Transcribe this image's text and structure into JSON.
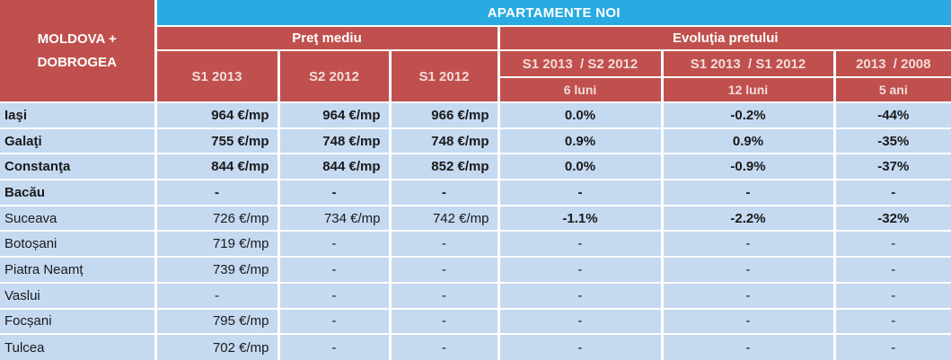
{
  "colors": {
    "title_band_blue": "#29ABE2",
    "header_red": "#C0504D",
    "row_light_blue": "#C5D9F1",
    "subheader_text_pink": "#F2DCDB",
    "grid_white": "#FFFFFF"
  },
  "chart_data": {
    "type": "table",
    "title": "APARTAMENTE NOI",
    "region_lines": [
      "MOLDOVA +",
      "DOBROGEA"
    ],
    "groups": [
      {
        "label": "Preţ mediu"
      },
      {
        "label": "Evoluţia pretului"
      }
    ],
    "price_columns": [
      "S1 2013",
      "S2 2012",
      "S1 2012"
    ],
    "change_columns": [
      {
        "period": "S1 2013  / S2 2012",
        "duration": "6 luni"
      },
      {
        "period": "S1 2013  / S1 2012",
        "duration": "12 luni"
      },
      {
        "period": "2013  / 2008",
        "duration": "5 ani"
      }
    ],
    "rows": [
      {
        "city": "Iaşi",
        "prices": [
          "964 €/mp",
          "964 €/mp",
          "966 €/mp"
        ],
        "changes": [
          "0.0%",
          "-0.2%",
          "-44%"
        ],
        "bold": {
          "city": true,
          "prices": true,
          "changes": true
        }
      },
      {
        "city": "Galaţi",
        "prices": [
          "755 €/mp",
          "748 €/mp",
          "748 €/mp"
        ],
        "changes": [
          "0.9%",
          "0.9%",
          "-35%"
        ],
        "bold": {
          "city": true,
          "prices": true,
          "changes": true
        }
      },
      {
        "city": "Constanţa",
        "prices": [
          "844 €/mp",
          "844 €/mp",
          "852 €/mp"
        ],
        "changes": [
          "0.0%",
          "-0.9%",
          "-37%"
        ],
        "bold": {
          "city": true,
          "prices": true,
          "changes": true
        }
      },
      {
        "city": "Bacău",
        "prices": [
          "-",
          "-",
          "-"
        ],
        "changes": [
          "-",
          "-",
          "-"
        ],
        "bold": {
          "city": true,
          "prices": true,
          "changes": true
        }
      },
      {
        "city": "Suceava",
        "prices": [
          "726 €/mp",
          "734 €/mp",
          "742 €/mp"
        ],
        "changes": [
          "-1.1%",
          "-2.2%",
          "-32%"
        ],
        "bold": {
          "city": false,
          "prices": false,
          "changes": true
        }
      },
      {
        "city": "Botoșani",
        "prices": [
          "719 €/mp",
          "-",
          "-"
        ],
        "changes": [
          "-",
          "-",
          "-"
        ],
        "bold": {
          "city": false,
          "prices": false,
          "changes": false
        }
      },
      {
        "city": "Piatra Neamț",
        "prices": [
          "739 €/mp",
          "-",
          "-"
        ],
        "changes": [
          "-",
          "-",
          "-"
        ],
        "bold": {
          "city": false,
          "prices": false,
          "changes": false
        }
      },
      {
        "city": "Vaslui",
        "prices": [
          "-",
          "-",
          "-"
        ],
        "changes": [
          "-",
          "-",
          "-"
        ],
        "bold": {
          "city": false,
          "prices": false,
          "changes": false
        }
      },
      {
        "city": "Focșani",
        "prices": [
          "795 €/mp",
          "-",
          "-"
        ],
        "changes": [
          "-",
          "-",
          "-"
        ],
        "bold": {
          "city": false,
          "prices": false,
          "changes": false
        }
      },
      {
        "city": "Tulcea",
        "prices": [
          "702 €/mp",
          "-",
          "-"
        ],
        "changes": [
          "-",
          "-",
          "-"
        ],
        "bold": {
          "city": false,
          "prices": false,
          "changes": false
        }
      }
    ]
  }
}
